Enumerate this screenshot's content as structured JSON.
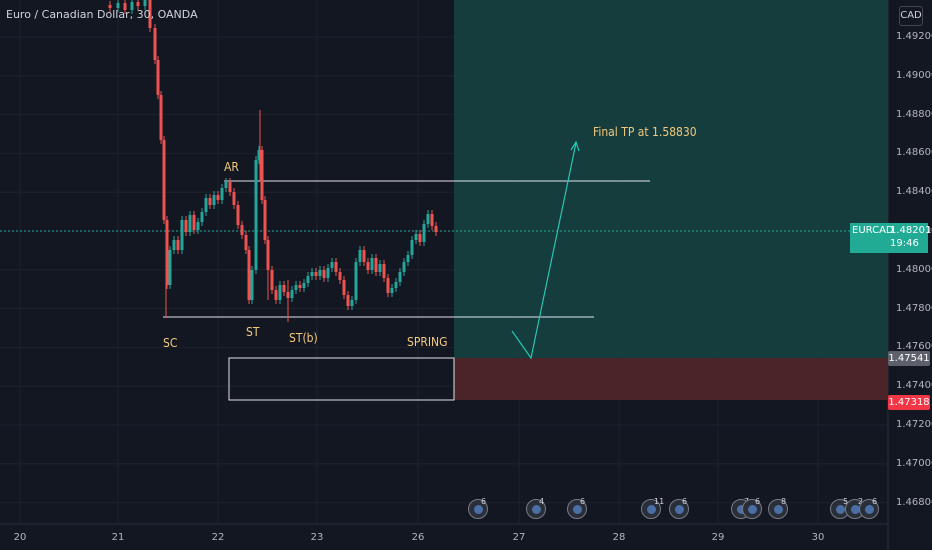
{
  "symbol_title": "Euro / Canadian Dollar, 30, OANDA",
  "currency_label": "CAD",
  "price_axis": [
    "1.49200",
    "1.49000",
    "1.48800",
    "1.48600",
    "1.48400",
    "1.48200",
    "1.48000",
    "1.47800",
    "1.47600",
    "1.47400",
    "1.47200",
    "1.47000",
    "1.46800"
  ],
  "time_axis": [
    "20",
    "21",
    "22",
    "23",
    "26",
    "27",
    "28",
    "29",
    "30"
  ],
  "current_price": {
    "symbol": "EURCAD",
    "price": "1.48201",
    "countdown": "19:46",
    "color": "#22ab94"
  },
  "position_tags": {
    "entry": "1.47541",
    "stop": "1.47318"
  },
  "annotations": {
    "sc": "SC",
    "ar": "AR",
    "st": "ST",
    "stb": "ST(b)",
    "spring": "SPRING",
    "target": "Final TP at 1.58830"
  },
  "event_counts": [
    "6",
    "4",
    "6",
    "11",
    "6",
    "7",
    "6",
    "8",
    "5",
    "2",
    "6"
  ],
  "colors": {
    "background": "#131722",
    "up": "#26a69a",
    "down": "#ef5350",
    "profit_zone": "#1b4a4a",
    "loss_zone": "#4a2428",
    "annotation": "#f2c97d",
    "target_arrow": "#26c6b5"
  }
}
